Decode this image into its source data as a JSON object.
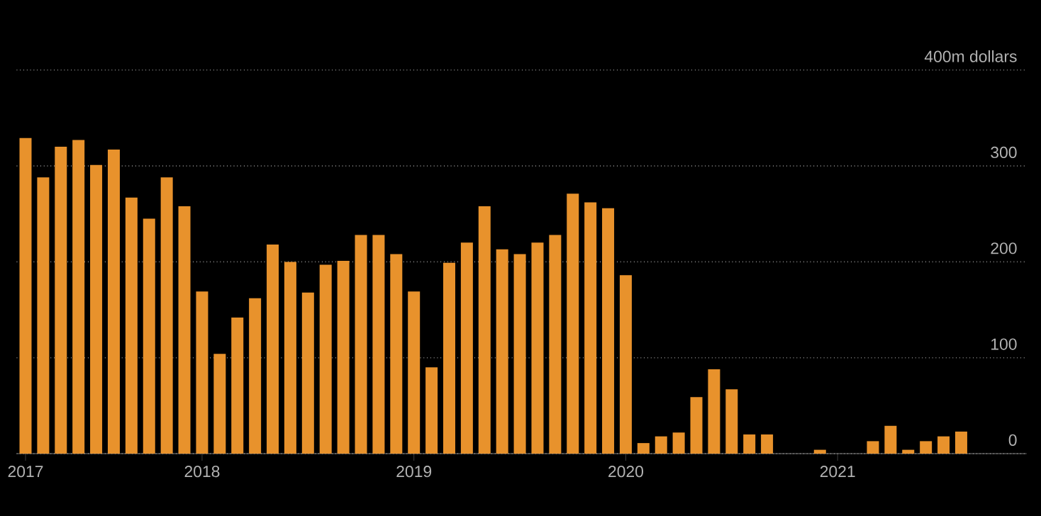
{
  "chart_data": {
    "type": "bar",
    "categories": [
      "2017",
      null,
      null,
      null,
      null,
      null,
      null,
      null,
      null,
      null,
      "2018",
      null,
      null,
      null,
      null,
      null,
      null,
      null,
      null,
      null,
      null,
      null,
      "2019",
      null,
      null,
      null,
      null,
      null,
      null,
      null,
      null,
      null,
      null,
      null,
      "2020",
      null,
      null,
      null,
      null,
      null,
      null,
      null,
      null,
      null,
      null,
      null,
      "2021",
      null,
      null,
      null,
      null,
      null,
      null,
      null
    ],
    "values": [
      329,
      288,
      320,
      327,
      301,
      317,
      267,
      245,
      288,
      258,
      169,
      104,
      142,
      162,
      218,
      200,
      168,
      197,
      201,
      228,
      228,
      208,
      169,
      90,
      199,
      220,
      258,
      213,
      208,
      220,
      228,
      271,
      262,
      256,
      186,
      11,
      18,
      22,
      59,
      88,
      67,
      20,
      20,
      0,
      0,
      4,
      0,
      0,
      13,
      29,
      4,
      13,
      18,
      23
    ],
    "color": "#e8922c",
    "ylim": [
      0,
      400
    ],
    "yticks": [
      0,
      100,
      200,
      300,
      {
        "value": 400,
        "label": "400m dollars"
      }
    ],
    "grid": "y"
  }
}
